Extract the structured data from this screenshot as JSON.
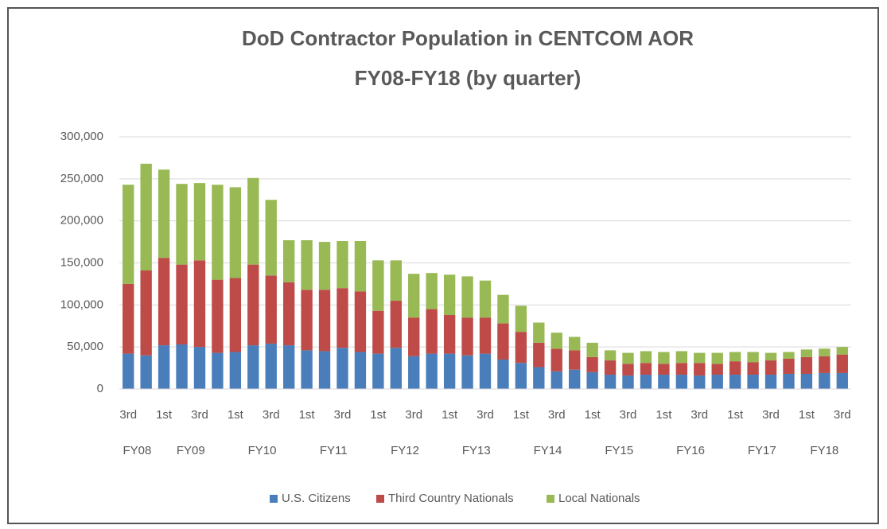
{
  "chart_data": {
    "type": "stacked_bar",
    "title": [
      "DoD Contractor Population in CENTCOM AOR",
      "FY08-FY18 (by quarter)"
    ],
    "categories": [
      "3rd",
      null,
      "1st",
      null,
      "3rd",
      null,
      "1st",
      null,
      "3rd",
      null,
      "1st",
      null,
      "3rd",
      null,
      "1st",
      null,
      "3rd",
      null,
      "1st",
      null,
      "3rd",
      null,
      "1st",
      null,
      "3rd",
      null,
      "1st",
      null,
      "3rd",
      null,
      "1st",
      null,
      "3rd",
      null,
      "1st",
      null,
      "3rd",
      null,
      "1st",
      null,
      "3rd"
    ],
    "x_groups": [
      {
        "label": "FY08",
        "start": 0,
        "end": 1
      },
      {
        "label": "FY09",
        "start": 2,
        "end": 5
      },
      {
        "label": "FY10",
        "start": 6,
        "end": 9
      },
      {
        "label": "FY11",
        "start": 10,
        "end": 13
      },
      {
        "label": "FY12",
        "start": 14,
        "end": 17
      },
      {
        "label": "FY13",
        "start": 18,
        "end": 21
      },
      {
        "label": "FY14",
        "start": 22,
        "end": 25
      },
      {
        "label": "FY15",
        "start": 26,
        "end": 29
      },
      {
        "label": "FY16",
        "start": 30,
        "end": 33
      },
      {
        "label": "FY17",
        "start": 34,
        "end": 37
      },
      {
        "label": "FY18",
        "start": 38,
        "end": 40
      }
    ],
    "series": [
      {
        "name": "U.S. Citizens",
        "color": "#4a7ebb",
        "values": [
          42000,
          40000,
          52000,
          53000,
          50000,
          43000,
          44000,
          52000,
          54000,
          52000,
          46000,
          45000,
          49000,
          44000,
          42000,
          49000,
          39000,
          42000,
          42000,
          40000,
          42000,
          35000,
          31000,
          26000,
          21000,
          23000,
          20000,
          17000,
          16000,
          17000,
          17000,
          17000,
          16000,
          17000,
          17000,
          17000,
          17000,
          18000,
          18000,
          19000,
          19000
        ]
      },
      {
        "name": "Third Country Nationals",
        "color": "#be4b48",
        "values": [
          83000,
          101000,
          104000,
          95000,
          103000,
          87000,
          88000,
          96000,
          81000,
          75000,
          72000,
          73000,
          71000,
          72000,
          51000,
          56000,
          46000,
          53000,
          46000,
          45000,
          43000,
          43000,
          37000,
          29000,
          27000,
          23000,
          18000,
          17000,
          14000,
          14000,
          13000,
          14000,
          15000,
          13000,
          16000,
          15000,
          17000,
          18000,
          20000,
          20000,
          22000
        ]
      },
      {
        "name": "Local Nationals",
        "color": "#98b954",
        "values": [
          118000,
          127000,
          105000,
          96000,
          92000,
          113000,
          108000,
          103000,
          90000,
          50000,
          59000,
          57000,
          56000,
          60000,
          60000,
          48000,
          52000,
          43000,
          48000,
          49000,
          44000,
          34000,
          31000,
          24000,
          19000,
          16000,
          17000,
          12000,
          13000,
          14000,
          14000,
          14000,
          12000,
          13000,
          11000,
          12000,
          9000,
          8000,
          9000,
          9000,
          9000
        ]
      }
    ],
    "ylim": [
      0,
      300000
    ],
    "yticks": [
      0,
      {
        "value": 50000,
        "label": "50,000"
      },
      {
        "value": 100000,
        "label": "100,000"
      },
      {
        "value": 150000,
        "label": "150,000"
      },
      {
        "value": 200000,
        "label": "200,000"
      },
      {
        "value": 250000,
        "label": "250,000"
      },
      {
        "value": 300000,
        "label": "300,000"
      }
    ],
    "grid": true,
    "legend": "bottom"
  }
}
